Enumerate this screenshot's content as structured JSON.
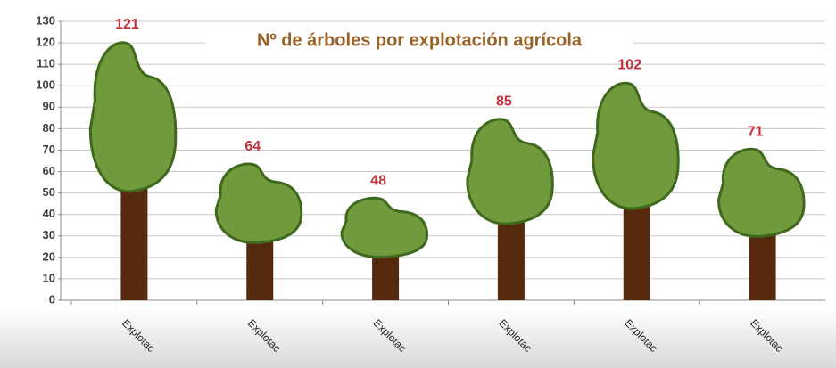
{
  "chart_data": {
    "type": "tree-pictograph",
    "title": "Nº de árboles por explotación agrícola",
    "categories": [
      "Explotac",
      "Explotac",
      "Explotac",
      "Explotac",
      "Explotac",
      "Explotac"
    ],
    "values": [
      121,
      64,
      48,
      85,
      102,
      71
    ],
    "crown_color": "#709a3c",
    "trunk_color": "#552a0c",
    "ylim": [
      0,
      130
    ],
    "yticks": [
      0,
      10,
      20,
      30,
      40,
      50,
      60,
      70,
      80,
      90,
      100,
      110,
      120,
      130
    ],
    "grid": true
  }
}
